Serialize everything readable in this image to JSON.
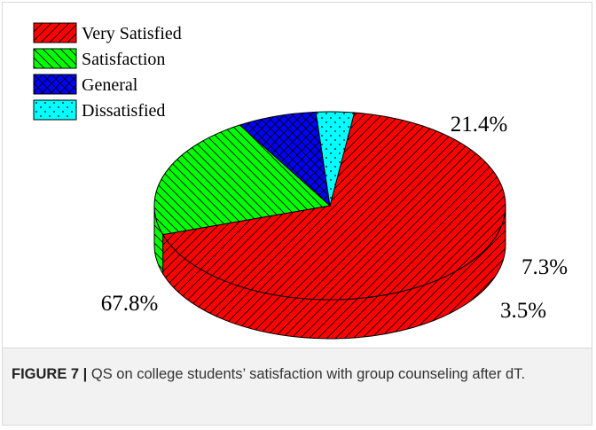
{
  "figure": {
    "label": "FIGURE 7 |",
    "caption": " QS on college students’ satisfaction with group counseling after dT."
  },
  "chart_data": {
    "type": "pie",
    "title": "",
    "legend_position": "top-left",
    "slices": [
      {
        "label": "Very Satisfied",
        "value": 67.8,
        "value_label": "67.8%",
        "color": "#ff0000",
        "hatch": "diagonal-forward"
      },
      {
        "label": "Satisfaction",
        "value": 21.4,
        "value_label": "21.4%",
        "color": "#00ff00",
        "hatch": "diagonal-back"
      },
      {
        "label": "General",
        "value": 7.3,
        "value_label": "7.3%",
        "color": "#0000ff",
        "hatch": "crosshatch"
      },
      {
        "label": "Dissatisfied",
        "value": 3.5,
        "value_label": "3.5%",
        "color": "#00ffff",
        "hatch": "dots"
      }
    ]
  }
}
